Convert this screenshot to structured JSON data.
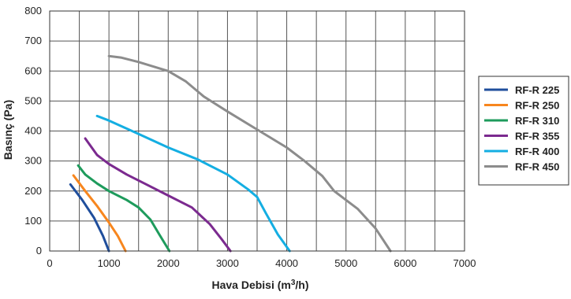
{
  "chart_data": {
    "type": "line",
    "title": "",
    "xlabel": "Hava Debisi (m",
    "xlabel_sup": "3",
    "xlabel_tail": "/h)",
    "ylabel": "Basınç (Pa)",
    "xlim": [
      0,
      7000
    ],
    "ylim": [
      0,
      800
    ],
    "x_ticks": [
      0,
      1000,
      2000,
      3000,
      4000,
      5000,
      6000,
      7000
    ],
    "y_ticks": [
      0,
      100,
      200,
      300,
      400,
      500,
      600,
      700,
      800
    ],
    "x_grid_step": 500,
    "y_grid_step": 100,
    "grid": true,
    "legend_position": "right",
    "series": [
      {
        "name": "RF-R 225",
        "color": "#1f4e9c",
        "points": [
          [
            350,
            222
          ],
          [
            550,
            170
          ],
          [
            750,
            110
          ],
          [
            900,
            50
          ],
          [
            1000,
            0
          ]
        ]
      },
      {
        "name": "RF-R 250",
        "color": "#f7861e",
        "points": [
          [
            400,
            252
          ],
          [
            600,
            200
          ],
          [
            800,
            150
          ],
          [
            1000,
            95
          ],
          [
            1150,
            50
          ],
          [
            1280,
            0
          ]
        ]
      },
      {
        "name": "RF-R 310",
        "color": "#1e9b5c",
        "points": [
          [
            480,
            285
          ],
          [
            600,
            255
          ],
          [
            800,
            225
          ],
          [
            1000,
            200
          ],
          [
            1300,
            170
          ],
          [
            1500,
            145
          ],
          [
            1700,
            105
          ],
          [
            1850,
            55
          ],
          [
            2020,
            0
          ]
        ]
      },
      {
        "name": "RF-R 355",
        "color": "#7b2a8f",
        "points": [
          [
            600,
            375
          ],
          [
            800,
            320
          ],
          [
            1000,
            290
          ],
          [
            1300,
            255
          ],
          [
            1600,
            225
          ],
          [
            2000,
            185
          ],
          [
            2400,
            145
          ],
          [
            2700,
            90
          ],
          [
            2900,
            40
          ],
          [
            3050,
            0
          ]
        ]
      },
      {
        "name": "RF-R 400",
        "color": "#14aee2",
        "points": [
          [
            800,
            450
          ],
          [
            1000,
            435
          ],
          [
            1500,
            390
          ],
          [
            2000,
            345
          ],
          [
            2500,
            305
          ],
          [
            3000,
            255
          ],
          [
            3350,
            205
          ],
          [
            3500,
            180
          ],
          [
            3650,
            125
          ],
          [
            3850,
            55
          ],
          [
            4050,
            0
          ]
        ]
      },
      {
        "name": "RF-R 450",
        "color": "#8c8c8c",
        "points": [
          [
            1000,
            650
          ],
          [
            1200,
            645
          ],
          [
            1500,
            630
          ],
          [
            2000,
            600
          ],
          [
            2300,
            565
          ],
          [
            2600,
            515
          ],
          [
            3000,
            465
          ],
          [
            3500,
            405
          ],
          [
            4000,
            345
          ],
          [
            4300,
            300
          ],
          [
            4600,
            250
          ],
          [
            4800,
            200
          ],
          [
            5200,
            140
          ],
          [
            5500,
            75
          ],
          [
            5750,
            0
          ]
        ]
      }
    ]
  }
}
